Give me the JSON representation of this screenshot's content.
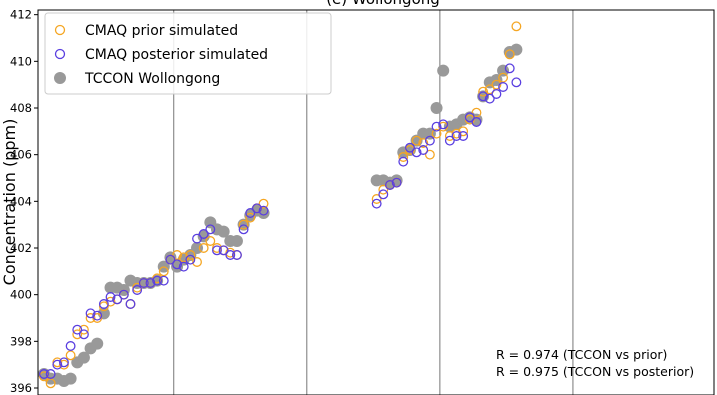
{
  "chart_data": {
    "type": "scatter",
    "title": "(e) Wollongong",
    "xlabel": "",
    "ylabel": "Concentration (ppm)",
    "ylim": [
      395.7,
      412.2
    ],
    "yticks": [
      396,
      398,
      400,
      402,
      404,
      406,
      408,
      410,
      412
    ],
    "xlim": [
      0,
      99.5
    ],
    "year_boundaries": [
      19.5,
      39.5,
      59.5,
      79.5
    ],
    "grid": false,
    "legend_position": "top-left",
    "series": [
      {
        "name": "CMAQ prior simulated",
        "marker": "open-circle",
        "color": "#f5a623",
        "points": [
          [
            0,
            396.5
          ],
          [
            1,
            396.2
          ],
          [
            2,
            397.1
          ],
          [
            3,
            397.0
          ],
          [
            4,
            397.4
          ],
          [
            5,
            398.3
          ],
          [
            6,
            398.5
          ],
          [
            7,
            399.0
          ],
          [
            8,
            399.0
          ],
          [
            9,
            399.5
          ],
          [
            10,
            399.7
          ],
          [
            11,
            399.8
          ],
          [
            12,
            400.0
          ],
          [
            13,
            399.6
          ],
          [
            14,
            400.3
          ],
          [
            15,
            400.5
          ],
          [
            16,
            400.5
          ],
          [
            17,
            400.7
          ],
          [
            18,
            401.0
          ],
          [
            19,
            401.5
          ],
          [
            20,
            401.7
          ],
          [
            21,
            401.6
          ],
          [
            22,
            401.7
          ],
          [
            23,
            401.4
          ],
          [
            24,
            402.0
          ],
          [
            25,
            402.3
          ],
          [
            26,
            402.0
          ],
          [
            27,
            401.9
          ],
          [
            28,
            401.8
          ],
          [
            29,
            401.7
          ],
          [
            30,
            403.0
          ],
          [
            31,
            403.3
          ],
          [
            32,
            403.7
          ],
          [
            33,
            403.9
          ],
          [
            50,
            404.1
          ],
          [
            51,
            404.5
          ],
          [
            52,
            404.7
          ],
          [
            53,
            404.8
          ],
          [
            54,
            405.9
          ],
          [
            55,
            406.2
          ],
          [
            56,
            406.6
          ],
          [
            57,
            406.5
          ],
          [
            58,
            406.0
          ],
          [
            59,
            406.9
          ],
          [
            60,
            407.2
          ],
          [
            61,
            406.8
          ],
          [
            62,
            406.9
          ],
          [
            63,
            407.0
          ],
          [
            64,
            407.5
          ],
          [
            65,
            407.8
          ],
          [
            66,
            408.7
          ],
          [
            67,
            408.8
          ],
          [
            68,
            409.0
          ],
          [
            69,
            409.3
          ],
          [
            70,
            410.3
          ],
          [
            71,
            411.5
          ]
        ]
      },
      {
        "name": "CMAQ posterior simulated",
        "marker": "open-circle",
        "color": "#5a3fe0",
        "points": [
          [
            0,
            396.6
          ],
          [
            1,
            396.6
          ],
          [
            2,
            397.0
          ],
          [
            3,
            397.1
          ],
          [
            4,
            397.8
          ],
          [
            5,
            398.5
          ],
          [
            6,
            398.3
          ],
          [
            7,
            399.2
          ],
          [
            8,
            399.1
          ],
          [
            9,
            399.6
          ],
          [
            10,
            399.9
          ],
          [
            11,
            399.8
          ],
          [
            12,
            400.0
          ],
          [
            13,
            399.6
          ],
          [
            14,
            400.2
          ],
          [
            15,
            400.5
          ],
          [
            16,
            400.5
          ],
          [
            17,
            400.6
          ],
          [
            18,
            400.6
          ],
          [
            19,
            401.5
          ],
          [
            20,
            401.3
          ],
          [
            21,
            401.2
          ],
          [
            22,
            401.5
          ],
          [
            23,
            402.4
          ],
          [
            24,
            402.6
          ],
          [
            25,
            402.8
          ],
          [
            26,
            401.9
          ],
          [
            27,
            401.9
          ],
          [
            28,
            401.7
          ],
          [
            29,
            401.7
          ],
          [
            30,
            402.8
          ],
          [
            31,
            403.5
          ],
          [
            32,
            403.7
          ],
          [
            33,
            403.6
          ],
          [
            50,
            403.9
          ],
          [
            51,
            404.3
          ],
          [
            52,
            404.7
          ],
          [
            53,
            404.8
          ],
          [
            54,
            405.7
          ],
          [
            55,
            406.3
          ],
          [
            56,
            406.1
          ],
          [
            57,
            406.2
          ],
          [
            58,
            406.6
          ],
          [
            59,
            407.2
          ],
          [
            60,
            407.3
          ],
          [
            61,
            406.6
          ],
          [
            62,
            406.8
          ],
          [
            63,
            406.8
          ],
          [
            64,
            407.6
          ],
          [
            65,
            407.4
          ],
          [
            66,
            408.5
          ],
          [
            67,
            408.4
          ],
          [
            68,
            408.6
          ],
          [
            69,
            408.9
          ],
          [
            70,
            409.7
          ],
          [
            71,
            409.1
          ]
        ]
      },
      {
        "name": "TCCON Wollongong",
        "marker": "filled-circle",
        "color": "#999999",
        "points": [
          [
            0,
            396.6
          ],
          [
            1,
            396.4
          ],
          [
            2,
            396.4
          ],
          [
            3,
            396.3
          ],
          [
            4,
            396.4
          ],
          [
            5,
            397.1
          ],
          [
            6,
            397.3
          ],
          [
            7,
            397.7
          ],
          [
            8,
            397.9
          ],
          [
            9,
            399.2
          ],
          [
            10,
            400.3
          ],
          [
            11,
            400.3
          ],
          [
            12,
            400.2
          ],
          [
            13,
            400.6
          ],
          [
            14,
            400.5
          ],
          [
            15,
            400.5
          ],
          [
            16,
            400.5
          ],
          [
            17,
            400.6
          ],
          [
            18,
            401.2
          ],
          [
            19,
            401.6
          ],
          [
            20,
            401.2
          ],
          [
            21,
            401.5
          ],
          [
            22,
            401.7
          ],
          [
            23,
            402.0
          ],
          [
            24,
            402.5
          ],
          [
            25,
            403.1
          ],
          [
            26,
            402.8
          ],
          [
            27,
            402.7
          ],
          [
            28,
            402.3
          ],
          [
            29,
            402.3
          ],
          [
            30,
            403.0
          ],
          [
            31,
            403.4
          ],
          [
            32,
            403.6
          ],
          [
            33,
            403.5
          ],
          [
            50,
            404.9
          ],
          [
            51,
            404.9
          ],
          [
            52,
            404.8
          ],
          [
            53,
            404.9
          ],
          [
            54,
            406.1
          ],
          [
            55,
            406.2
          ],
          [
            56,
            406.6
          ],
          [
            57,
            406.9
          ],
          [
            58,
            406.9
          ],
          [
            59,
            408.0
          ],
          [
            60,
            409.6
          ],
          [
            61,
            407.2
          ],
          [
            62,
            407.3
          ],
          [
            63,
            407.5
          ],
          [
            64,
            407.6
          ],
          [
            65,
            407.5
          ],
          [
            66,
            408.5
          ],
          [
            67,
            409.1
          ],
          [
            68,
            409.2
          ],
          [
            69,
            409.6
          ],
          [
            70,
            410.4
          ],
          [
            71,
            410.5
          ]
        ]
      }
    ],
    "annotations": [
      "R = 0.974 (TCCON vs prior)",
      "R = 0.975 (TCCON vs posterior)"
    ]
  }
}
